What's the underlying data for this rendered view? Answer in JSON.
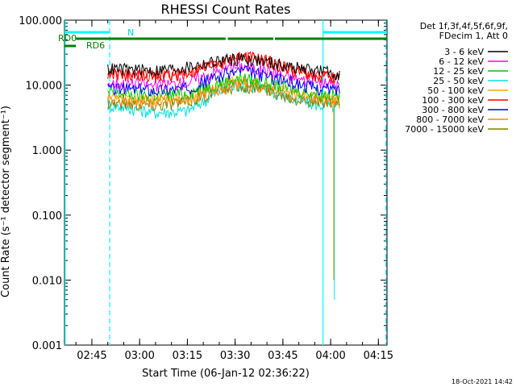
{
  "chart_data": {
    "type": "line",
    "title": "RHESSI Count Rates",
    "xlabel": "Start Time (06-Jan-12 02:36:22)",
    "ylabel": "Count Rate (s⁻¹ detector segment⁻¹)",
    "y_scale": "log",
    "ylim": [
      0.001,
      100
    ],
    "xlim_minutes": [
      156.4,
      257.7
    ],
    "x_ticks": [
      {
        "label": "02:45",
        "min": 165
      },
      {
        "label": "03:00",
        "min": 180
      },
      {
        "label": "03:15",
        "min": 195
      },
      {
        "label": "03:30",
        "min": 210
      },
      {
        "label": "03:45",
        "min": 225
      },
      {
        "label": "04:00",
        "min": 240
      },
      {
        "label": "04:15",
        "min": 255
      }
    ],
    "y_ticks": [
      {
        "label": "100.000",
        "value": 100
      },
      {
        "label": "10.000",
        "value": 10
      },
      {
        "label": "1.000",
        "value": 1
      },
      {
        "label": "0.100",
        "value": 0.1
      },
      {
        "label": "0.010",
        "value": 0.01
      },
      {
        "label": "0.001",
        "value": 0.001
      }
    ],
    "legend_header": [
      "Det 1f,3f,4f,5f,6f,9f,",
      "FDecim 1, Att 0"
    ],
    "legend_position": "right",
    "series": [
      {
        "name": "3 - 6 keV",
        "color": "#000000",
        "points": [
          [
            170,
            18
          ],
          [
            185,
            17
          ],
          [
            195,
            19
          ],
          [
            205,
            24
          ],
          [
            212,
            26
          ],
          [
            220,
            23
          ],
          [
            228,
            19
          ],
          [
            236,
            17
          ],
          [
            243,
            15
          ]
        ]
      },
      {
        "name": "6 - 12 keV",
        "color": "#ff00ff",
        "points": [
          [
            170,
            11
          ],
          [
            185,
            10
          ],
          [
            195,
            11
          ],
          [
            205,
            17
          ],
          [
            212,
            20
          ],
          [
            220,
            17
          ],
          [
            228,
            13
          ],
          [
            236,
            11
          ],
          [
            243,
            10
          ]
        ]
      },
      {
        "name": "12 - 25 keV",
        "color": "#00cc00",
        "points": [
          [
            170,
            7.5
          ],
          [
            185,
            7
          ],
          [
            195,
            7.5
          ],
          [
            205,
            11
          ],
          [
            212,
            13
          ],
          [
            220,
            11
          ],
          [
            228,
            8.5
          ],
          [
            236,
            7.5
          ],
          [
            243,
            7
          ]
        ]
      },
      {
        "name": "25 - 50 keV",
        "color": "#00e0e0",
        "points": [
          [
            170,
            5
          ],
          [
            185,
            3.8
          ],
          [
            195,
            4
          ],
          [
            205,
            8
          ],
          [
            212,
            10
          ],
          [
            220,
            8.5
          ],
          [
            228,
            6
          ],
          [
            236,
            5
          ],
          [
            243,
            4.5
          ]
        ]
      },
      {
        "name": "50 - 100 keV",
        "color": "#ffaa00",
        "points": [
          [
            170,
            6.5
          ],
          [
            185,
            6
          ],
          [
            195,
            6.5
          ],
          [
            205,
            10
          ],
          [
            212,
            12
          ],
          [
            220,
            10
          ],
          [
            228,
            7.5
          ],
          [
            236,
            6.5
          ],
          [
            243,
            6
          ]
        ]
      },
      {
        "name": "100 - 300 keV",
        "color": "#ff0000",
        "points": [
          [
            170,
            15
          ],
          [
            185,
            14
          ],
          [
            195,
            15
          ],
          [
            205,
            22
          ],
          [
            212,
            28
          ],
          [
            220,
            24
          ],
          [
            228,
            17
          ],
          [
            236,
            14
          ],
          [
            243,
            13
          ]
        ]
      },
      {
        "name": "300 - 800 keV",
        "color": "#0000ff",
        "points": [
          [
            170,
            9
          ],
          [
            185,
            8.5
          ],
          [
            195,
            9
          ],
          [
            205,
            14
          ],
          [
            212,
            17
          ],
          [
            220,
            14
          ],
          [
            228,
            11
          ],
          [
            236,
            9
          ],
          [
            243,
            8.5
          ]
        ]
      },
      {
        "name": "800 - 7000 keV",
        "color": "#ff8800",
        "points": [
          [
            170,
            6
          ],
          [
            185,
            5.5
          ],
          [
            195,
            6
          ],
          [
            205,
            9
          ],
          [
            212,
            11
          ],
          [
            220,
            9
          ],
          [
            228,
            7
          ],
          [
            236,
            6
          ],
          [
            243,
            5.5
          ]
        ]
      },
      {
        "name": "7000 - 15000 keV",
        "color": "#808000",
        "points": [
          [
            170,
            5.5
          ],
          [
            185,
            5
          ],
          [
            195,
            5.5
          ],
          [
            205,
            8.5
          ],
          [
            212,
            10
          ],
          [
            220,
            8.5
          ],
          [
            228,
            6.5
          ],
          [
            236,
            5.5
          ],
          [
            243,
            5
          ]
        ]
      }
    ],
    "annotations": {
      "N_label": "N",
      "RD0_label": "RD0",
      "RD6_label": "RD6"
    },
    "flag_bars": {
      "N": {
        "color": "#00ffff",
        "segments": [
          [
            156.4,
            170.5
          ],
          [
            237.7,
            257.7
          ]
        ]
      },
      "RD0": {
        "color": "#008000",
        "segments": [
          [
            160,
            207
          ],
          [
            207.7,
            222
          ],
          [
            222.5,
            257.7
          ]
        ]
      },
      "RD6": {
        "color": "#008000",
        "segments": [
          [
            156.4,
            160
          ]
        ]
      }
    },
    "vertical_lines": [
      {
        "min": 156.6,
        "style": "solid",
        "color": "#00ffff"
      },
      {
        "min": 170.6,
        "style": "dashed",
        "color": "#00ffff"
      },
      {
        "min": 237.6,
        "style": "solid",
        "color": "#00ffff"
      },
      {
        "min": 257.4,
        "style": "dashed",
        "color": "#00ffff"
      }
    ]
  },
  "footer": {
    "timestamp": "18-Oct-2021 14:42"
  }
}
